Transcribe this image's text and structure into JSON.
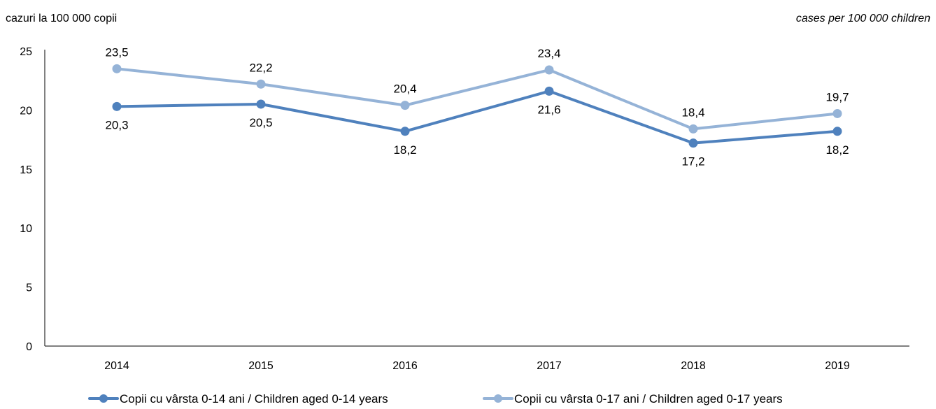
{
  "units": {
    "left": "cazuri la 100 000 copii",
    "right": "cases per 100 000 children"
  },
  "colors": {
    "series_0_14": "#4f81bd",
    "series_0_17": "#95b3d7",
    "axis": "#000000"
  },
  "chart_data": {
    "type": "line",
    "x": [
      "2014",
      "2015",
      "2016",
      "2017",
      "2018",
      "2019"
    ],
    "ylim": [
      0,
      25
    ],
    "yticks": [
      0,
      5,
      10,
      15,
      20,
      25
    ],
    "grid": false,
    "legend_position": "bottom",
    "series": [
      {
        "name": "Copii cu vârsta 0-14 ani / Children aged 0-14 years",
        "values": [
          20.3,
          20.5,
          18.2,
          21.6,
          17.2,
          18.2
        ],
        "labels": [
          "20,3",
          "20,5",
          "18,2",
          "21,6",
          "17,2",
          "18,2"
        ]
      },
      {
        "name": "Copii cu vârsta 0-17 ani / Children aged 0-17 years",
        "values": [
          23.5,
          22.2,
          20.4,
          23.4,
          18.4,
          19.7
        ],
        "labels": [
          "23,5",
          "22,2",
          "20,4",
          "23,4",
          "18,4",
          "19,7"
        ]
      }
    ]
  }
}
